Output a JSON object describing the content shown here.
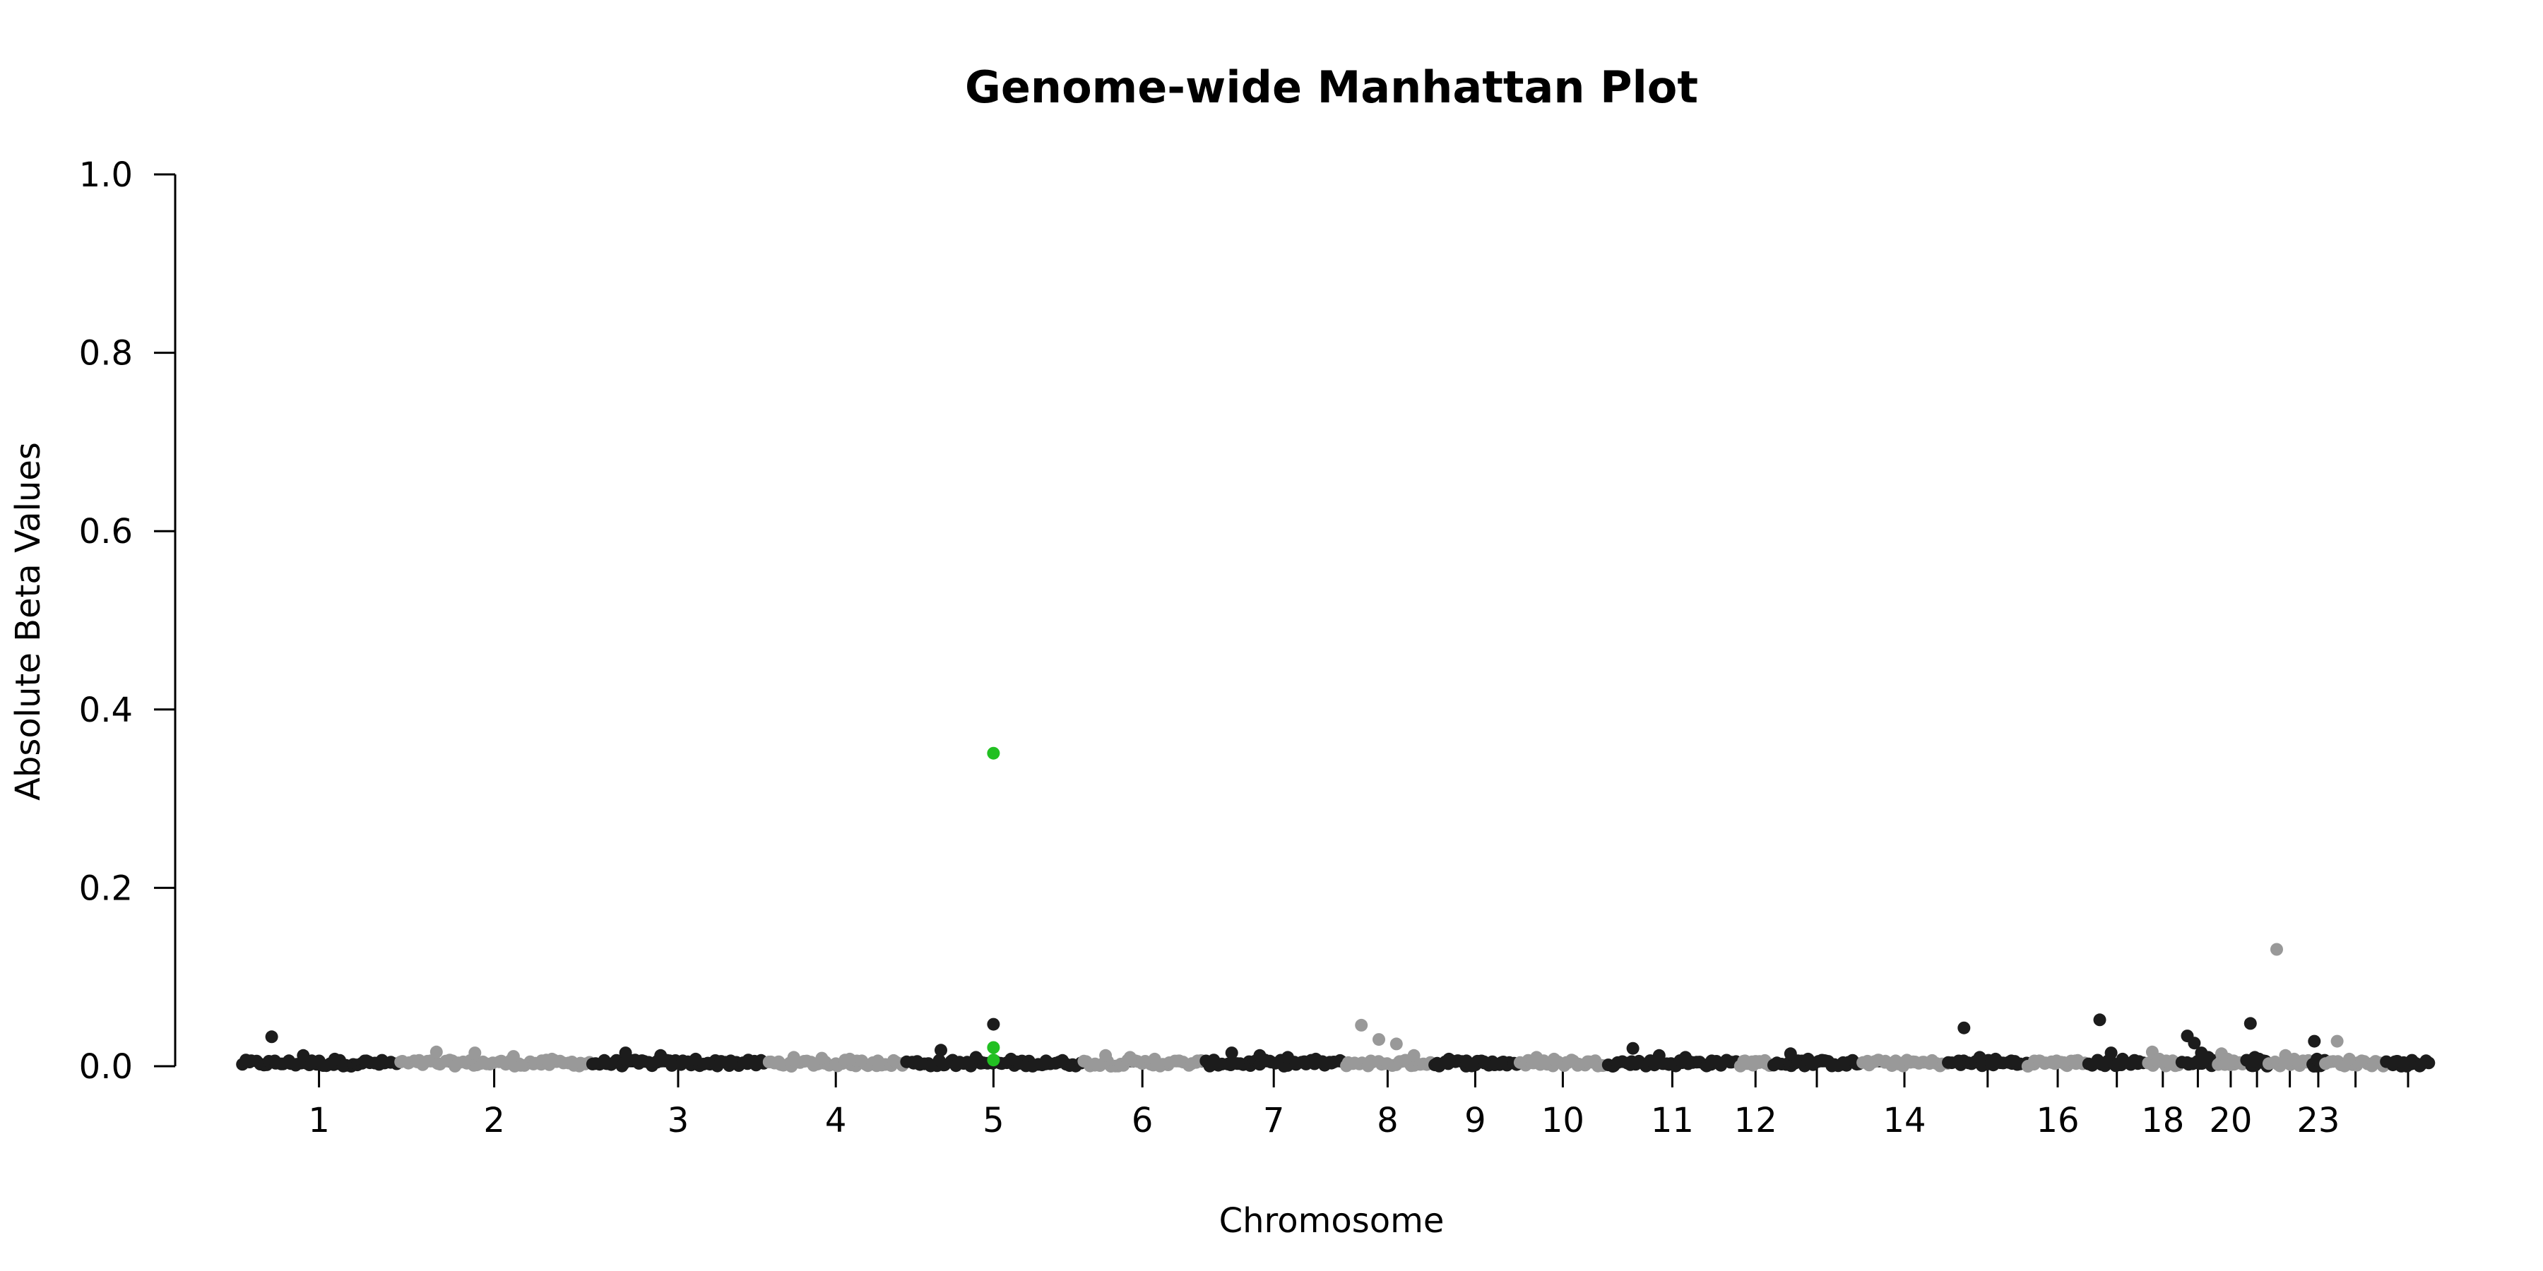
{
  "chart_data": {
    "type": "scatter",
    "title": "Genome-wide Manhattan Plot",
    "xlabel": "Chromosome",
    "ylabel": "Absolute Beta Values",
    "ylim": [
      0,
      1.0
    ],
    "y_ticks": [
      0.0,
      0.2,
      0.4,
      0.6,
      0.8,
      1.0
    ],
    "y_tick_labels": [
      "0.0",
      "0.2",
      "0.4",
      "0.6",
      "0.8",
      "1.0"
    ],
    "grid": false,
    "legend": "none",
    "colors": {
      "odd": "#1c1c1c",
      "even": "#999999",
      "highlight": "#22c022"
    },
    "x_tick_labels": [
      "1",
      "2",
      "3",
      "4",
      "5",
      "6",
      "7",
      "8",
      "9",
      "10",
      "11",
      "12",
      "14",
      "16",
      "18",
      "20",
      "23"
    ],
    "chromosomes": [
      {
        "chr": "1",
        "labeled": true,
        "max_points": [
          0.033,
          0.012,
          0.008,
          0.006
        ]
      },
      {
        "chr": "2",
        "labeled": true,
        "max_points": [
          0.016,
          0.015,
          0.011,
          0.008
        ]
      },
      {
        "chr": "3",
        "labeled": true,
        "max_points": [
          0.015,
          0.012,
          0.008,
          0.006
        ]
      },
      {
        "chr": "4",
        "labeled": true,
        "max_points": [
          0.01,
          0.009,
          0.008,
          0.006
        ]
      },
      {
        "chr": "5",
        "labeled": true,
        "max_points": [
          0.018,
          0.01,
          0.008,
          0.006
        ]
      },
      {
        "chr": "6",
        "labeled": true,
        "max_points": [
          0.012,
          0.01,
          0.008,
          0.006
        ]
      },
      {
        "chr": "7",
        "labeled": true,
        "max_points": [
          0.015,
          0.012,
          0.01,
          0.008
        ]
      },
      {
        "chr": "8",
        "labeled": true,
        "max_points": [
          0.046,
          0.03,
          0.025,
          0.012
        ]
      },
      {
        "chr": "9",
        "labeled": true,
        "max_points": [
          0.008,
          0.006,
          0.005,
          0.004
        ]
      },
      {
        "chr": "10",
        "labeled": true,
        "max_points": [
          0.01,
          0.008,
          0.007,
          0.005
        ]
      },
      {
        "chr": "11",
        "labeled": true,
        "max_points": [
          0.02,
          0.012,
          0.01,
          0.006
        ]
      },
      {
        "chr": "12",
        "labeled": true,
        "max_points": [
          0.006,
          0.005,
          0.004,
          0.003
        ]
      },
      {
        "chr": "13",
        "labeled": false,
        "max_points": [
          0.014,
          0.008,
          0.006,
          0.004
        ]
      },
      {
        "chr": "14",
        "labeled": true,
        "max_points": [
          0.007,
          0.006,
          0.005,
          0.004
        ]
      },
      {
        "chr": "15",
        "labeled": false,
        "max_points": [
          0.043,
          0.01,
          0.008,
          0.006
        ]
      },
      {
        "chr": "16",
        "labeled": true,
        "max_points": [
          0.006,
          0.005,
          0.004,
          0.003
        ]
      },
      {
        "chr": "17",
        "labeled": false,
        "max_points": [
          0.052,
          0.015,
          0.008,
          0.006
        ]
      },
      {
        "chr": "18",
        "labeled": true,
        "max_points": [
          0.016,
          0.008,
          0.006,
          0.004
        ]
      },
      {
        "chr": "19",
        "labeled": false,
        "max_points": [
          0.034,
          0.026,
          0.015,
          0.01
        ]
      },
      {
        "chr": "20",
        "labeled": true,
        "max_points": [
          0.014,
          0.008,
          0.006,
          0.004
        ]
      },
      {
        "chr": "21",
        "labeled": false,
        "max_points": [
          0.048,
          0.01,
          0.008,
          0.006
        ]
      },
      {
        "chr": "22",
        "labeled": false,
        "max_points": [
          0.131,
          0.012,
          0.008,
          0.006
        ]
      },
      {
        "chr": "23",
        "labeled": true,
        "max_points": [
          0.028,
          0.008,
          0.006,
          0.004
        ]
      },
      {
        "chr": "24",
        "labeled": false,
        "max_points": [
          0.028,
          0.008,
          0.006,
          0.004
        ]
      },
      {
        "chr": "25",
        "labeled": false,
        "max_points": [
          0.005,
          0.004,
          0.003,
          0.002
        ]
      }
    ],
    "highlighted_points": [
      {
        "chr": "5",
        "y": 0.351
      },
      {
        "chr": "5",
        "y": 0.021
      },
      {
        "chr": "5",
        "y": 0.007
      }
    ],
    "annotations": [
      {
        "chr": "5",
        "y": 0.047
      }
    ]
  }
}
